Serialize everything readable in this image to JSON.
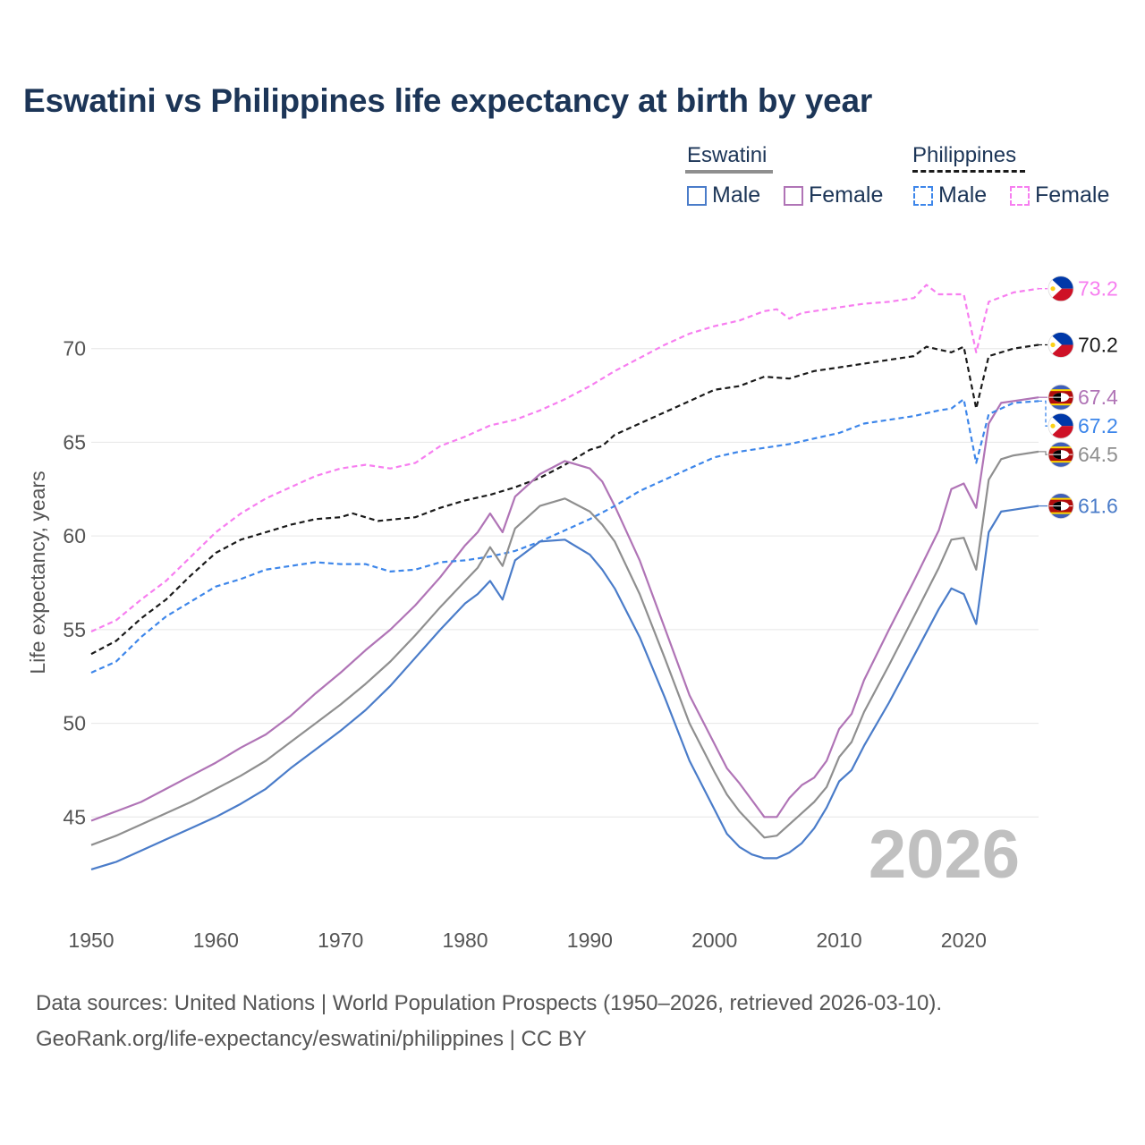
{
  "title": "Eswatini vs Philippines life expectancy at birth by year",
  "legend": {
    "eswatini": {
      "label": "Eswatini",
      "male": "Male",
      "female": "Female"
    },
    "philippines": {
      "label": "Philippines",
      "male": "Male",
      "female": "Female"
    }
  },
  "year_label": "2026",
  "footer": {
    "sources": "Data sources: United Nations | World Population Prospects (1950–2026, retrieved 2026-03-10).",
    "credit": "GeoRank.org/life-expectancy/eswatini/philippines | CC BY"
  },
  "chart_data": {
    "type": "line",
    "title": "Eswatini vs Philippines life expectancy at birth by year",
    "xlabel": "",
    "ylabel": "Life expectancy, years",
    "xlim": [
      1950,
      2026
    ],
    "ylim": [
      40,
      75
    ],
    "xticks": [
      1950,
      1960,
      1970,
      1980,
      1990,
      2000,
      2010,
      2020
    ],
    "yticks": [
      45,
      50,
      55,
      60,
      65,
      70
    ],
    "grid": true,
    "colors": {
      "eswatini_total": "#8f8f8f",
      "eswatini_male": "#4a7cc9",
      "eswatini_female": "#b074b6",
      "philippines_total": "#1a1a1a",
      "philippines_male": "#3d86ea",
      "philippines_female": "#f77ef0"
    },
    "series": [
      {
        "name": "Philippines Female",
        "country": "philippines",
        "dash": true,
        "color": "#f77ef0",
        "points": [
          [
            1950,
            54.9
          ],
          [
            1952,
            55.5
          ],
          [
            1954,
            56.6
          ],
          [
            1956,
            57.6
          ],
          [
            1958,
            58.9
          ],
          [
            1960,
            60.2
          ],
          [
            1962,
            61.2
          ],
          [
            1964,
            62.0
          ],
          [
            1966,
            62.6
          ],
          [
            1968,
            63.2
          ],
          [
            1970,
            63.6
          ],
          [
            1972,
            63.8
          ],
          [
            1974,
            63.6
          ],
          [
            1976,
            63.9
          ],
          [
            1978,
            64.8
          ],
          [
            1980,
            65.3
          ],
          [
            1982,
            65.9
          ],
          [
            1984,
            66.2
          ],
          [
            1986,
            66.7
          ],
          [
            1988,
            67.3
          ],
          [
            1990,
            68.0
          ],
          [
            1992,
            68.8
          ],
          [
            1994,
            69.5
          ],
          [
            1996,
            70.2
          ],
          [
            1998,
            70.8
          ],
          [
            2000,
            71.2
          ],
          [
            2002,
            71.5
          ],
          [
            2004,
            72.0
          ],
          [
            2005,
            72.1
          ],
          [
            2006,
            71.6
          ],
          [
            2007,
            71.9
          ],
          [
            2010,
            72.2
          ],
          [
            2012,
            72.4
          ],
          [
            2014,
            72.5
          ],
          [
            2016,
            72.7
          ],
          [
            2017,
            73.4
          ],
          [
            2018,
            72.9
          ],
          [
            2020,
            72.9
          ],
          [
            2021,
            69.8
          ],
          [
            2022,
            72.5
          ],
          [
            2024,
            73.0
          ],
          [
            2026,
            73.2
          ]
        ],
        "end_value": 73.2,
        "end_label": "73.2",
        "flag": "philippines"
      },
      {
        "name": "Philippines",
        "country": "philippines",
        "dash": true,
        "color": "#1a1a1a",
        "points": [
          [
            1950,
            53.7
          ],
          [
            1952,
            54.4
          ],
          [
            1954,
            55.6
          ],
          [
            1956,
            56.6
          ],
          [
            1958,
            57.9
          ],
          [
            1960,
            59.1
          ],
          [
            1962,
            59.8
          ],
          [
            1964,
            60.2
          ],
          [
            1966,
            60.6
          ],
          [
            1968,
            60.9
          ],
          [
            1970,
            61.0
          ],
          [
            1971,
            61.2
          ],
          [
            1973,
            60.8
          ],
          [
            1976,
            61.0
          ],
          [
            1978,
            61.5
          ],
          [
            1980,
            61.9
          ],
          [
            1982,
            62.2
          ],
          [
            1984,
            62.6
          ],
          [
            1986,
            63.1
          ],
          [
            1988,
            63.8
          ],
          [
            1990,
            64.6
          ],
          [
            1991,
            64.8
          ],
          [
            1992,
            65.4
          ],
          [
            1994,
            66.0
          ],
          [
            1996,
            66.6
          ],
          [
            1998,
            67.2
          ],
          [
            2000,
            67.8
          ],
          [
            2002,
            68.0
          ],
          [
            2004,
            68.5
          ],
          [
            2006,
            68.4
          ],
          [
            2008,
            68.8
          ],
          [
            2010,
            69.0
          ],
          [
            2012,
            69.2
          ],
          [
            2014,
            69.4
          ],
          [
            2016,
            69.6
          ],
          [
            2017,
            70.1
          ],
          [
            2019,
            69.8
          ],
          [
            2020,
            70.1
          ],
          [
            2021,
            66.8
          ],
          [
            2022,
            69.6
          ],
          [
            2024,
            70.0
          ],
          [
            2026,
            70.2
          ]
        ],
        "end_value": 70.2,
        "end_label": "70.2",
        "flag": "philippines"
      },
      {
        "name": "Eswatini Female",
        "country": "eswatini",
        "dash": false,
        "color": "#b074b6",
        "points": [
          [
            1950,
            44.8
          ],
          [
            1952,
            45.3
          ],
          [
            1954,
            45.8
          ],
          [
            1956,
            46.5
          ],
          [
            1958,
            47.2
          ],
          [
            1960,
            47.9
          ],
          [
            1962,
            48.7
          ],
          [
            1964,
            49.4
          ],
          [
            1966,
            50.4
          ],
          [
            1968,
            51.6
          ],
          [
            1970,
            52.7
          ],
          [
            1972,
            53.9
          ],
          [
            1974,
            55.0
          ],
          [
            1976,
            56.3
          ],
          [
            1978,
            57.8
          ],
          [
            1980,
            59.5
          ],
          [
            1981,
            60.2
          ],
          [
            1982,
            61.2
          ],
          [
            1983,
            60.2
          ],
          [
            1984,
            62.1
          ],
          [
            1986,
            63.3
          ],
          [
            1988,
            64.0
          ],
          [
            1990,
            63.6
          ],
          [
            1991,
            62.9
          ],
          [
            1992,
            61.6
          ],
          [
            1994,
            58.7
          ],
          [
            1996,
            55.1
          ],
          [
            1998,
            51.5
          ],
          [
            2000,
            48.9
          ],
          [
            2001,
            47.6
          ],
          [
            2002,
            46.8
          ],
          [
            2003,
            45.9
          ],
          [
            2004,
            45.0
          ],
          [
            2005,
            45.0
          ],
          [
            2006,
            46.0
          ],
          [
            2007,
            46.7
          ],
          [
            2008,
            47.1
          ],
          [
            2009,
            48.0
          ],
          [
            2010,
            49.7
          ],
          [
            2011,
            50.5
          ],
          [
            2012,
            52.3
          ],
          [
            2014,
            55.0
          ],
          [
            2016,
            57.6
          ],
          [
            2018,
            60.3
          ],
          [
            2019,
            62.5
          ],
          [
            2020,
            62.8
          ],
          [
            2021,
            61.5
          ],
          [
            2022,
            66.0
          ],
          [
            2023,
            67.1
          ],
          [
            2024,
            67.2
          ],
          [
            2026,
            67.4
          ]
        ],
        "end_value": 67.4,
        "end_label": "67.4",
        "flag": "eswatini"
      },
      {
        "name": "Philippines Male",
        "country": "philippines",
        "dash": true,
        "color": "#3d86ea",
        "points": [
          [
            1950,
            52.7
          ],
          [
            1952,
            53.3
          ],
          [
            1954,
            54.6
          ],
          [
            1956,
            55.7
          ],
          [
            1958,
            56.5
          ],
          [
            1960,
            57.3
          ],
          [
            1962,
            57.7
          ],
          [
            1964,
            58.2
          ],
          [
            1966,
            58.4
          ],
          [
            1968,
            58.6
          ],
          [
            1970,
            58.5
          ],
          [
            1972,
            58.5
          ],
          [
            1974,
            58.1
          ],
          [
            1976,
            58.2
          ],
          [
            1978,
            58.6
          ],
          [
            1980,
            58.7
          ],
          [
            1982,
            58.9
          ],
          [
            1984,
            59.2
          ],
          [
            1986,
            59.7
          ],
          [
            1988,
            60.3
          ],
          [
            1990,
            60.9
          ],
          [
            1992,
            61.6
          ],
          [
            1994,
            62.4
          ],
          [
            1996,
            63.0
          ],
          [
            1998,
            63.6
          ],
          [
            2000,
            64.2
          ],
          [
            2002,
            64.5
          ],
          [
            2004,
            64.7
          ],
          [
            2006,
            64.9
          ],
          [
            2008,
            65.2
          ],
          [
            2010,
            65.5
          ],
          [
            2012,
            66.0
          ],
          [
            2014,
            66.2
          ],
          [
            2016,
            66.4
          ],
          [
            2018,
            66.7
          ],
          [
            2019,
            66.8
          ],
          [
            2020,
            67.3
          ],
          [
            2021,
            63.9
          ],
          [
            2022,
            66.5
          ],
          [
            2024,
            67.1
          ],
          [
            2026,
            67.2
          ]
        ],
        "end_value": 67.2,
        "end_label": "67.2",
        "flag": "philippines"
      },
      {
        "name": "Eswatini",
        "country": "eswatini",
        "dash": false,
        "color": "#8f8f8f",
        "points": [
          [
            1950,
            43.5
          ],
          [
            1952,
            44.0
          ],
          [
            1954,
            44.6
          ],
          [
            1956,
            45.2
          ],
          [
            1958,
            45.8
          ],
          [
            1960,
            46.5
          ],
          [
            1962,
            47.2
          ],
          [
            1964,
            48.0
          ],
          [
            1966,
            49.0
          ],
          [
            1968,
            50.0
          ],
          [
            1970,
            51.0
          ],
          [
            1972,
            52.1
          ],
          [
            1974,
            53.3
          ],
          [
            1976,
            54.7
          ],
          [
            1978,
            56.2
          ],
          [
            1980,
            57.6
          ],
          [
            1981,
            58.3
          ],
          [
            1982,
            59.4
          ],
          [
            1983,
            58.4
          ],
          [
            1984,
            60.4
          ],
          [
            1986,
            61.6
          ],
          [
            1988,
            62.0
          ],
          [
            1990,
            61.3
          ],
          [
            1991,
            60.6
          ],
          [
            1992,
            59.7
          ],
          [
            1994,
            56.9
          ],
          [
            1996,
            53.5
          ],
          [
            1998,
            50.0
          ],
          [
            2000,
            47.4
          ],
          [
            2001,
            46.2
          ],
          [
            2002,
            45.3
          ],
          [
            2003,
            44.6
          ],
          [
            2004,
            43.9
          ],
          [
            2005,
            44.0
          ],
          [
            2006,
            44.6
          ],
          [
            2007,
            45.2
          ],
          [
            2008,
            45.8
          ],
          [
            2009,
            46.6
          ],
          [
            2010,
            48.2
          ],
          [
            2011,
            49.0
          ],
          [
            2012,
            50.6
          ],
          [
            2014,
            53.1
          ],
          [
            2016,
            55.7
          ],
          [
            2018,
            58.3
          ],
          [
            2019,
            59.8
          ],
          [
            2020,
            59.9
          ],
          [
            2021,
            58.2
          ],
          [
            2022,
            63.0
          ],
          [
            2023,
            64.1
          ],
          [
            2024,
            64.3
          ],
          [
            2026,
            64.5
          ]
        ],
        "end_value": 64.5,
        "end_label": "64.5",
        "flag": "eswatini"
      },
      {
        "name": "Eswatini Male",
        "country": "eswatini",
        "dash": false,
        "color": "#4a7cc9",
        "points": [
          [
            1950,
            42.2
          ],
          [
            1952,
            42.6
          ],
          [
            1954,
            43.2
          ],
          [
            1956,
            43.8
          ],
          [
            1958,
            44.4
          ],
          [
            1960,
            45.0
          ],
          [
            1962,
            45.7
          ],
          [
            1964,
            46.5
          ],
          [
            1966,
            47.6
          ],
          [
            1968,
            48.6
          ],
          [
            1970,
            49.6
          ],
          [
            1972,
            50.7
          ],
          [
            1974,
            52.0
          ],
          [
            1976,
            53.5
          ],
          [
            1978,
            55.0
          ],
          [
            1980,
            56.4
          ],
          [
            1981,
            56.9
          ],
          [
            1982,
            57.6
          ],
          [
            1983,
            56.6
          ],
          [
            1984,
            58.7
          ],
          [
            1986,
            59.7
          ],
          [
            1988,
            59.8
          ],
          [
            1990,
            59.0
          ],
          [
            1991,
            58.2
          ],
          [
            1992,
            57.2
          ],
          [
            1994,
            54.6
          ],
          [
            1996,
            51.4
          ],
          [
            1998,
            48.0
          ],
          [
            2000,
            45.4
          ],
          [
            2001,
            44.1
          ],
          [
            2002,
            43.4
          ],
          [
            2003,
            43.0
          ],
          [
            2004,
            42.8
          ],
          [
            2005,
            42.8
          ],
          [
            2006,
            43.1
          ],
          [
            2007,
            43.6
          ],
          [
            2008,
            44.4
          ],
          [
            2009,
            45.5
          ],
          [
            2010,
            46.9
          ],
          [
            2011,
            47.5
          ],
          [
            2012,
            48.8
          ],
          [
            2014,
            51.1
          ],
          [
            2016,
            53.6
          ],
          [
            2018,
            56.1
          ],
          [
            2019,
            57.2
          ],
          [
            2020,
            56.9
          ],
          [
            2021,
            55.3
          ],
          [
            2022,
            60.2
          ],
          [
            2023,
            61.3
          ],
          [
            2024,
            61.4
          ],
          [
            2026,
            61.6
          ]
        ],
        "end_value": 61.6,
        "end_label": "61.6",
        "flag": "eswatini"
      }
    ]
  }
}
